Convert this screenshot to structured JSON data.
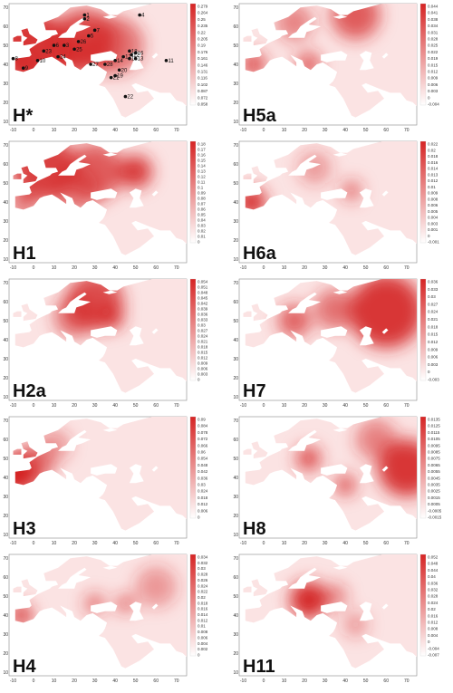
{
  "axes": {
    "x_ticks": [
      "-10",
      "0",
      "10",
      "20",
      "30",
      "40",
      "50",
      "60",
      "70"
    ],
    "y_ticks": [
      "70",
      "60",
      "50",
      "40",
      "30",
      "20",
      "10"
    ]
  },
  "panels": [
    {
      "label": "H*",
      "colorbar_ticks": [
        "0.279",
        "0.264",
        "0.25",
        "0.235",
        "0.22",
        "0.205",
        "0.19",
        "0.176",
        "0.161",
        "0.146",
        "0.131",
        "0.116",
        "0.102",
        "0.087",
        "0.072",
        "0.058"
      ]
    },
    {
      "label": "H5a",
      "colorbar_ticks": [
        "0.044",
        "0.041",
        "0.038",
        "0.034",
        "0.031",
        "0.028",
        "0.025",
        "0.022",
        "0.019",
        "0.015",
        "0.012",
        "0.009",
        "0.006",
        "0.003",
        "0",
        "-0.004"
      ]
    },
    {
      "label": "H1",
      "colorbar_ticks": [
        "0.18",
        "0.17",
        "0.16",
        "0.15",
        "0.14",
        "0.13",
        "0.12",
        "0.11",
        "0.1",
        "0.09",
        "0.08",
        "0.07",
        "0.06",
        "0.05",
        "0.04",
        "0.03",
        "0.02",
        "0.01",
        "0"
      ]
    },
    {
      "label": "H6a",
      "colorbar_ticks": [
        "0.022",
        "0.02",
        "0.018",
        "0.016",
        "0.014",
        "0.013",
        "0.012",
        "0.01",
        "0.009",
        "0.008",
        "0.006",
        "0.005",
        "0.004",
        "0.003",
        "0.001",
        "0",
        "-0.001"
      ]
    },
    {
      "label": "H2a",
      "colorbar_ticks": [
        "0.054",
        "0.051",
        "0.048",
        "0.045",
        "0.042",
        "0.039",
        "0.036",
        "0.033",
        "0.03",
        "0.027",
        "0.024",
        "0.021",
        "0.018",
        "0.015",
        "0.012",
        "0.009",
        "0.006",
        "0.003",
        "0"
      ]
    },
    {
      "label": "H7",
      "colorbar_ticks": [
        "0.036",
        "0.033",
        "0.03",
        "0.027",
        "0.024",
        "0.021",
        "0.018",
        "0.015",
        "0.012",
        "0.009",
        "0.006",
        "0.003",
        "0",
        "-0.003"
      ]
    },
    {
      "label": "H3",
      "colorbar_ticks": [
        "0.09",
        "0.084",
        "0.078",
        "0.072",
        "0.066",
        "0.06",
        "0.054",
        "0.048",
        "0.042",
        "0.036",
        "0.03",
        "0.024",
        "0.018",
        "0.012",
        "0.006",
        "0"
      ]
    },
    {
      "label": "H8",
      "colorbar_ticks": [
        "0.0135",
        "0.0125",
        "0.0115",
        "0.0105",
        "0.0095",
        "0.0085",
        "0.0075",
        "0.0065",
        "0.0055",
        "0.0045",
        "0.0035",
        "0.0025",
        "0.0015",
        "0.0005",
        "-0.0005",
        "-0.0015"
      ]
    },
    {
      "label": "H4",
      "colorbar_ticks": [
        "0.034",
        "0.032",
        "0.03",
        "0.028",
        "0.026",
        "0.024",
        "0.022",
        "0.02",
        "0.018",
        "0.016",
        "0.014",
        "0.012",
        "0.01",
        "0.008",
        "0.006",
        "0.004",
        "0.002",
        "0"
      ]
    },
    {
      "label": "H11",
      "colorbar_ticks": [
        "0.052",
        "0.048",
        "0.044",
        "0.04",
        "0.036",
        "0.032",
        "0.028",
        "0.024",
        "0.02",
        "0.016",
        "0.012",
        "0.008",
        "0.004",
        "0",
        "-0.004",
        "-0.007"
      ]
    }
  ],
  "sites": [
    "1",
    "2",
    "3",
    "4",
    "5",
    "6",
    "7",
    "8",
    "9",
    "10",
    "11",
    "12",
    "13",
    "14",
    "15",
    "16",
    "17",
    "18",
    "19",
    "20",
    "21",
    "22",
    "23",
    "24",
    "25",
    "26",
    "27",
    "28"
  ]
}
